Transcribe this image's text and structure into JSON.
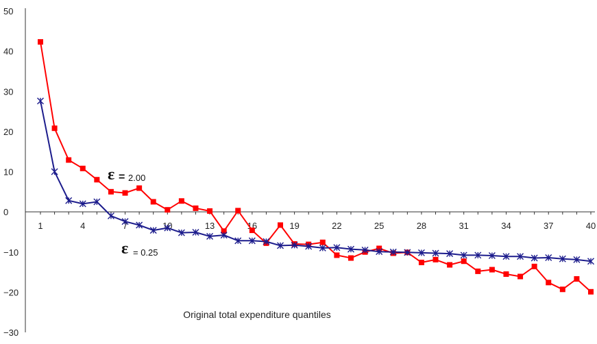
{
  "chart_data": {
    "type": "line",
    "title": "",
    "xlabel": "Original total expenditure quantiles",
    "ylabel": "",
    "xlim": [
      1,
      40
    ],
    "ylim": [
      -30,
      50
    ],
    "yticks": [
      50,
      40,
      30,
      20,
      10,
      0,
      -10,
      -20,
      -30
    ],
    "ytick_labels": [
      "50",
      "40",
      "30",
      "20",
      "10",
      "0",
      "−10",
      "−20",
      "−30"
    ],
    "xticks": [
      1,
      4,
      7,
      10,
      13,
      16,
      19,
      22,
      25,
      28,
      31,
      34,
      37,
      40
    ],
    "xtick_labels": [
      "1",
      "4",
      "7",
      "10",
      "13",
      "16",
      "19",
      "22",
      "25",
      "28",
      "31",
      "34",
      "37",
      "40"
    ],
    "grid": false,
    "x": [
      1,
      2,
      3,
      4,
      5,
      6,
      7,
      8,
      9,
      10,
      11,
      12,
      13,
      14,
      15,
      16,
      17,
      18,
      19,
      20,
      21,
      22,
      23,
      24,
      25,
      26,
      27,
      28,
      29,
      30,
      31,
      32,
      33,
      34,
      35,
      36,
      37,
      38,
      39,
      40
    ],
    "series": [
      {
        "label_symbol": "ε",
        "label_eq": "=",
        "label_value": "2.00",
        "color": "#ff0000",
        "marker": "square",
        "values": [
          42.3,
          20.8,
          12.9,
          10.8,
          8.0,
          5.0,
          4.7,
          5.9,
          2.5,
          0.5,
          2.7,
          0.9,
          0.2,
          -4.8,
          0.3,
          -4.6,
          -7.8,
          -3.3,
          -8.0,
          -8.1,
          -7.6,
          -10.8,
          -11.5,
          -10.0,
          -9.1,
          -10.3,
          -10.1,
          -12.6,
          -11.9,
          -13.2,
          -12.3,
          -14.8,
          -14.4,
          -15.5,
          -16.1,
          -13.6,
          -17.6,
          -19.3,
          -16.7,
          -19.9
        ]
      },
      {
        "label_symbol": "ε",
        "label_eq": "",
        "label_value": "= 0.25",
        "color": "#1c1c8c",
        "marker": "asterisk",
        "values": [
          27.6,
          10.0,
          2.8,
          2.0,
          2.5,
          -1.0,
          -2.4,
          -3.3,
          -4.6,
          -4.0,
          -5.2,
          -5.1,
          -6.1,
          -5.8,
          -7.2,
          -7.2,
          -7.4,
          -8.4,
          -8.3,
          -8.6,
          -9.0,
          -8.9,
          -9.3,
          -9.5,
          -9.9,
          -10.0,
          -10.1,
          -10.2,
          -10.3,
          -10.4,
          -10.8,
          -10.8,
          -10.9,
          -11.1,
          -11.1,
          -11.5,
          -11.4,
          -11.7,
          -11.9,
          -12.3
        ]
      }
    ]
  }
}
